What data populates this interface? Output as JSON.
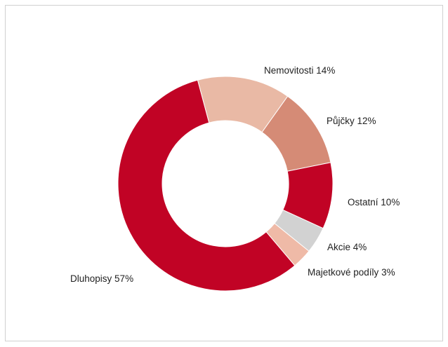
{
  "chart_data": {
    "type": "donut",
    "categories": [
      "Nemovitosti",
      "Půjčky",
      "Ostatní",
      "Akcie",
      "Majetkové podíly",
      "Dluhopisy"
    ],
    "values": [
      14,
      12,
      10,
      4,
      3,
      57
    ],
    "value_labels": [
      "14%",
      "12%",
      "10%",
      "4%",
      "3%",
      "57%"
    ],
    "colors": [
      "#e9b9a5",
      "#d58b76",
      "#c10325",
      "#d2d2d2",
      "#efbaa7",
      "#c10325"
    ]
  }
}
